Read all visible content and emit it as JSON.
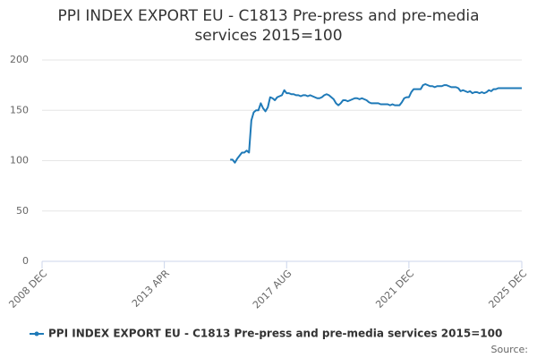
{
  "chart_data": {
    "type": "line",
    "title": "PPI INDEX EXPORT EU - C1813 Pre-press and pre-media services 2015=100",
    "source": "Source:",
    "categories": [
      "2008 DEC",
      null,
      null,
      null,
      null,
      null,
      null,
      null,
      null,
      null,
      null,
      null,
      null,
      null,
      null,
      null,
      null,
      null,
      null,
      null,
      null,
      null,
      null,
      null,
      null,
      null,
      null,
      null,
      null,
      null,
      null,
      null,
      null,
      null,
      null,
      null,
      null,
      null,
      null,
      null,
      null,
      null,
      null,
      null,
      null,
      null,
      null,
      null,
      null,
      null,
      null,
      null,
      "2013 APR",
      null,
      null,
      null,
      null,
      null,
      null,
      null,
      null,
      null,
      null,
      null,
      null,
      null,
      null,
      null,
      null,
      null,
      null,
      null,
      null,
      null,
      null,
      null,
      null,
      null,
      null,
      null,
      null,
      null,
      null,
      null,
      null,
      null,
      null,
      null,
      null,
      null,
      null,
      null,
      null,
      null,
      null,
      null,
      null,
      null,
      null,
      null,
      null,
      null,
      null,
      null,
      "2017 AUG",
      null,
      null,
      null,
      null,
      null,
      null,
      null,
      null,
      null,
      null,
      null,
      null,
      null,
      null,
      null,
      null,
      null,
      null,
      null,
      null,
      null,
      null,
      null,
      null,
      null,
      null,
      null,
      null,
      null,
      null,
      null,
      null,
      null,
      null,
      null,
      null,
      null,
      null,
      null,
      null,
      null,
      null,
      null,
      null,
      null,
      null,
      null,
      null,
      null,
      null,
      null,
      "2021 DEC",
      null,
      null,
      null,
      null,
      null,
      null,
      null,
      null,
      null,
      null,
      null,
      null,
      null,
      null,
      null,
      null,
      null,
      null,
      null,
      null,
      null,
      null,
      null,
      null,
      null,
      null,
      null,
      null,
      null,
      null,
      null,
      null,
      null,
      null,
      null,
      null,
      null,
      null,
      null,
      null,
      null,
      null,
      null,
      null,
      null,
      null,
      null,
      "2025 DEC"
    ],
    "series": [
      {
        "name": "PPI INDEX EXPORT EU - C1813 Pre-press and pre-media services 2015=100",
        "color": "#1f7ab8",
        "values": [
          null,
          null,
          null,
          null,
          null,
          null,
          null,
          null,
          null,
          null,
          null,
          null,
          null,
          null,
          null,
          null,
          null,
          null,
          null,
          null,
          null,
          null,
          null,
          null,
          null,
          null,
          null,
          null,
          null,
          null,
          null,
          null,
          null,
          null,
          null,
          null,
          null,
          null,
          null,
          null,
          null,
          null,
          null,
          null,
          null,
          null,
          null,
          null,
          null,
          null,
          null,
          null,
          null,
          null,
          null,
          null,
          null,
          null,
          null,
          null,
          null,
          null,
          null,
          null,
          null,
          null,
          null,
          null,
          null,
          null,
          null,
          null,
          null,
          null,
          null,
          null,
          null,
          null,
          null,
          null,
          101,
          101,
          98,
          102,
          105,
          108,
          108,
          110,
          108,
          140,
          148,
          150,
          150,
          157,
          152,
          149,
          153,
          163,
          162,
          160,
          163,
          164,
          165,
          170,
          167,
          167,
          166,
          166,
          165,
          165,
          164,
          165,
          165,
          164,
          165,
          164,
          163,
          162,
          162,
          163,
          165,
          166,
          165,
          163,
          161,
          157,
          155,
          157,
          160,
          160,
          159,
          160,
          161,
          162,
          162,
          161,
          162,
          161,
          160,
          158,
          157,
          157,
          157,
          157,
          156,
          156,
          156,
          156,
          155,
          156,
          155,
          155,
          155,
          158,
          162,
          163,
          163,
          168,
          171,
          171,
          171,
          171,
          175,
          176,
          175,
          174,
          174,
          173,
          174,
          174,
          174,
          175,
          175,
          174,
          173,
          173,
          173,
          172,
          169,
          170,
          169,
          168,
          169,
          167,
          168,
          168,
          167,
          168,
          167,
          168,
          170,
          169,
          171,
          171,
          172,
          172,
          172,
          172,
          172,
          172,
          172,
          172,
          172,
          172,
          172
        ]
      }
    ],
    "ylim": [
      0,
      200
    ],
    "yticks": [
      0,
      50,
      100,
      150,
      200
    ],
    "grid": true
  }
}
